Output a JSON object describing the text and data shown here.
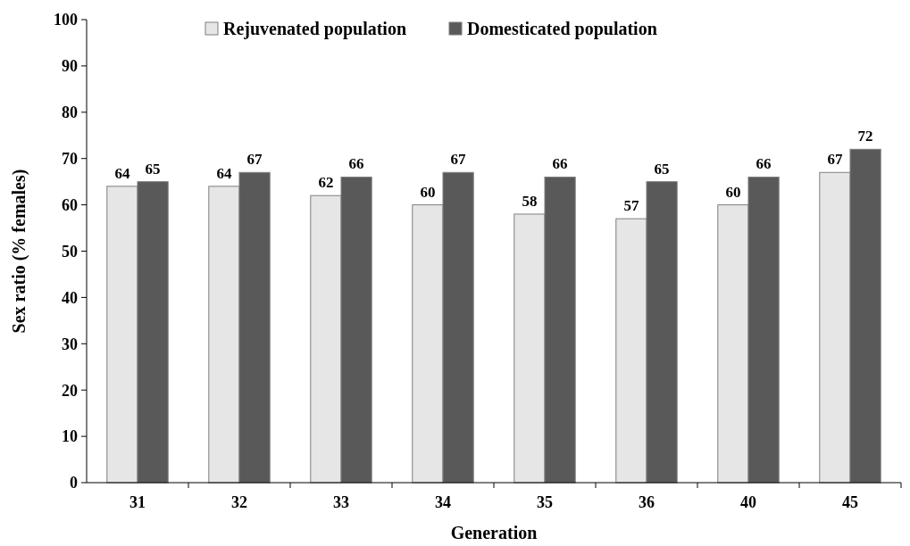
{
  "chart_data": {
    "type": "bar",
    "xlabel": "Generation",
    "ylabel": "Sex ratio (% females)",
    "categories": [
      "31",
      "32",
      "33",
      "34",
      "35",
      "36",
      "40",
      "45"
    ],
    "series": [
      {
        "name": "Rejuvenated population",
        "color": "#e6e6e6",
        "values": [
          64,
          64,
          62,
          60,
          58,
          57,
          60,
          67
        ]
      },
      {
        "name": "Domesticated population",
        "color": "#595959",
        "values": [
          65,
          67,
          66,
          67,
          66,
          65,
          66,
          72
        ]
      }
    ],
    "ylim": [
      0,
      100
    ],
    "yticks": [
      0,
      10,
      20,
      30,
      40,
      50,
      60,
      70,
      80,
      90,
      100
    ],
    "grid": false,
    "legend": "top",
    "data_labels": true
  }
}
